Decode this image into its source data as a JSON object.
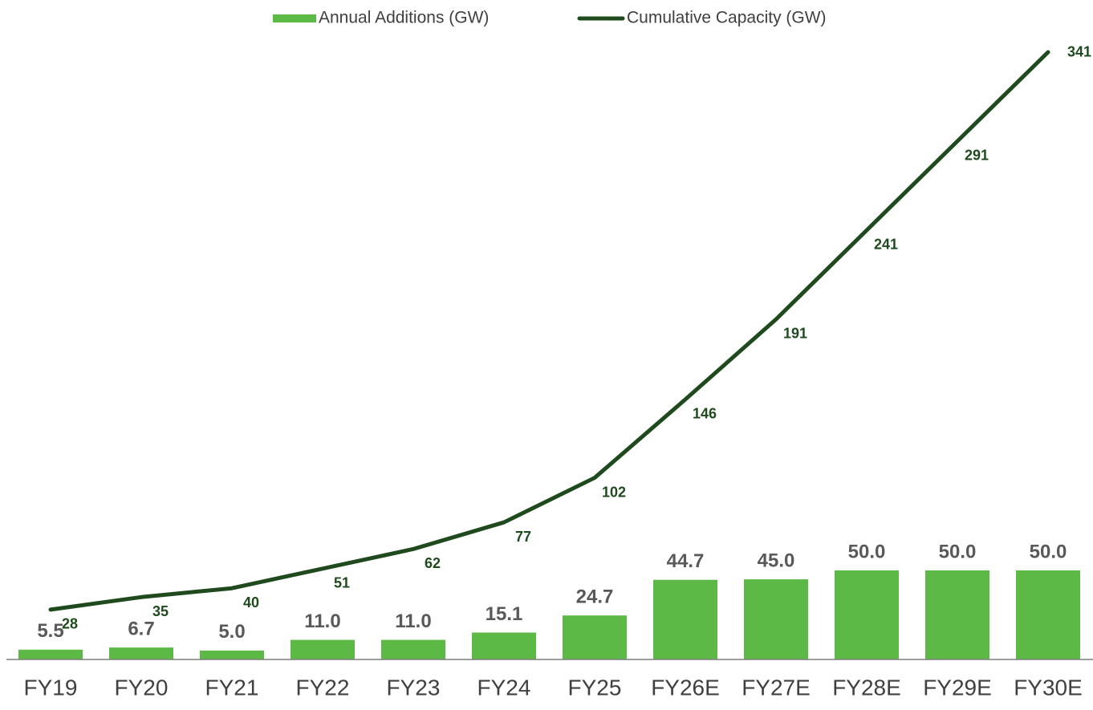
{
  "chart_data": {
    "type": "bar_line",
    "categories": [
      "FY19",
      "FY20",
      "FY21",
      "FY22",
      "FY23",
      "FY24",
      "FY25",
      "FY26E",
      "FY27E",
      "FY28E",
      "FY29E",
      "FY30E"
    ],
    "series": [
      {
        "name": "Annual Additions (GW)",
        "type": "bar",
        "color": "#5cb946",
        "values": [
          5.5,
          6.7,
          5.0,
          11.0,
          11.0,
          15.1,
          24.7,
          44.7,
          45.0,
          50.0,
          50.0,
          50.0
        ],
        "value_labels": [
          "5.5",
          "6.7",
          "5.0",
          "11.0",
          "11.0",
          "15.1",
          "24.7",
          "44.7",
          "45.0",
          "50.0",
          "50.0",
          "50.0"
        ]
      },
      {
        "name": "Cumulative Capacity (GW)",
        "type": "line",
        "color": "#1f4a1e",
        "values": [
          28,
          35,
          40,
          51,
          62,
          77,
          102,
          146,
          191,
          241,
          291,
          341
        ]
      }
    ],
    "ylim": [
      0,
      350
    ],
    "legend": "top"
  }
}
